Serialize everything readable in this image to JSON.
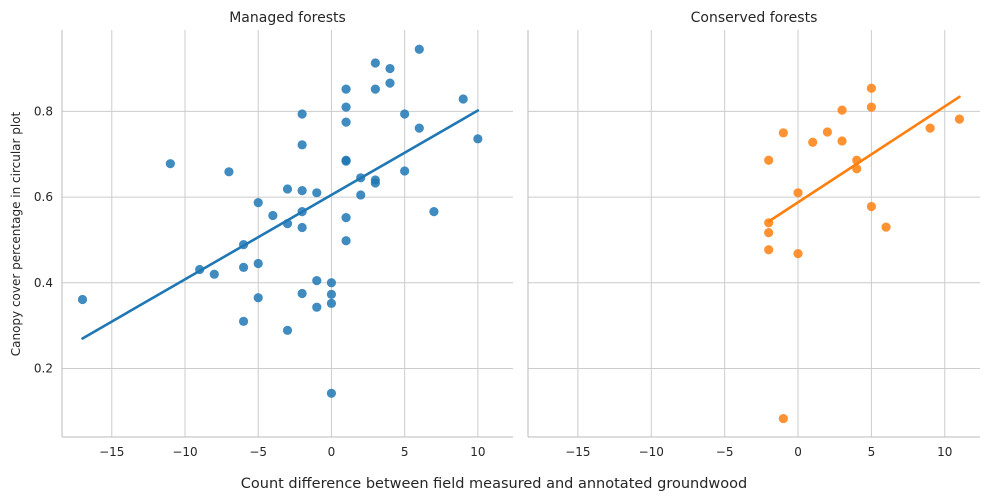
{
  "chart_data": {
    "type": "scatter",
    "xlabel": "Count difference between field measured and annotated groundwood",
    "ylabel": "Canopy cover percentage in circular plot",
    "xlim": [
      -18.4,
      12.4
    ],
    "ylim": [
      0.04,
      0.99
    ],
    "x_ticks": [
      -15,
      -10,
      -5,
      0,
      5,
      10
    ],
    "y_ticks": [
      0.2,
      0.4,
      0.6,
      0.8
    ],
    "x_tick_labels": [
      "−15",
      "−10",
      "−5",
      "0",
      "5",
      "10"
    ],
    "y_tick_labels": [
      "0.2",
      "0.4",
      "0.6",
      "0.8"
    ],
    "grid": true,
    "legend": "none",
    "panels": [
      {
        "title": "Managed forests",
        "color": "#1f77b4",
        "fit": {
          "x": [
            -17,
            10
          ],
          "y": [
            0.27,
            0.802
          ]
        },
        "points": [
          {
            "x": -17,
            "y": 0.361
          },
          {
            "x": -11,
            "y": 0.678
          },
          {
            "x": -9,
            "y": 0.431
          },
          {
            "x": -8,
            "y": 0.42
          },
          {
            "x": -7,
            "y": 0.659
          },
          {
            "x": -6,
            "y": 0.489
          },
          {
            "x": -6,
            "y": 0.436
          },
          {
            "x": -6,
            "y": 0.31
          },
          {
            "x": -5,
            "y": 0.587
          },
          {
            "x": -5,
            "y": 0.445
          },
          {
            "x": -5,
            "y": 0.365
          },
          {
            "x": -4,
            "y": 0.557
          },
          {
            "x": -3,
            "y": 0.619
          },
          {
            "x": -3,
            "y": 0.538
          },
          {
            "x": -3,
            "y": 0.289
          },
          {
            "x": -2,
            "y": 0.794
          },
          {
            "x": -2,
            "y": 0.722
          },
          {
            "x": -2,
            "y": 0.615
          },
          {
            "x": -2,
            "y": 0.566
          },
          {
            "x": -2,
            "y": 0.529
          },
          {
            "x": -2,
            "y": 0.375
          },
          {
            "x": -1,
            "y": 0.61
          },
          {
            "x": -1,
            "y": 0.405
          },
          {
            "x": -1,
            "y": 0.343
          },
          {
            "x": 0,
            "y": 0.4
          },
          {
            "x": 0,
            "y": 0.373
          },
          {
            "x": 0,
            "y": 0.352
          },
          {
            "x": 0,
            "y": 0.142
          },
          {
            "x": 1,
            "y": 0.852
          },
          {
            "x": 1,
            "y": 0.81
          },
          {
            "x": 1,
            "y": 0.775
          },
          {
            "x": 1,
            "y": 0.686
          },
          {
            "x": 1,
            "y": 0.684
          },
          {
            "x": 1,
            "y": 0.552
          },
          {
            "x": 1,
            "y": 0.498
          },
          {
            "x": 2,
            "y": 0.645
          },
          {
            "x": 2,
            "y": 0.605
          },
          {
            "x": 3,
            "y": 0.913
          },
          {
            "x": 3,
            "y": 0.852
          },
          {
            "x": 3,
            "y": 0.64
          },
          {
            "x": 3,
            "y": 0.633
          },
          {
            "x": 4,
            "y": 0.9
          },
          {
            "x": 4,
            "y": 0.866
          },
          {
            "x": 5,
            "y": 0.794
          },
          {
            "x": 5,
            "y": 0.661
          },
          {
            "x": 6,
            "y": 0.945
          },
          {
            "x": 6,
            "y": 0.761
          },
          {
            "x": 7,
            "y": 0.566
          },
          {
            "x": 9,
            "y": 0.829
          },
          {
            "x": 10,
            "y": 0.736
          }
        ]
      },
      {
        "title": "Conserved forests",
        "color": "#ff7f0e",
        "fit": {
          "x": [
            -2,
            11
          ],
          "y": [
            0.543,
            0.834
          ]
        },
        "points": [
          {
            "x": -2,
            "y": 0.686
          },
          {
            "x": -2,
            "y": 0.54
          },
          {
            "x": -2,
            "y": 0.517
          },
          {
            "x": -2,
            "y": 0.477
          },
          {
            "x": -1,
            "y": 0.75
          },
          {
            "x": -1,
            "y": 0.083
          },
          {
            "x": 0,
            "y": 0.61
          },
          {
            "x": 0,
            "y": 0.468
          },
          {
            "x": 1,
            "y": 0.728
          },
          {
            "x": 2,
            "y": 0.752
          },
          {
            "x": 3,
            "y": 0.803
          },
          {
            "x": 3,
            "y": 0.731
          },
          {
            "x": 4,
            "y": 0.686
          },
          {
            "x": 4,
            "y": 0.666
          },
          {
            "x": 5,
            "y": 0.854
          },
          {
            "x": 5,
            "y": 0.81
          },
          {
            "x": 5,
            "y": 0.578
          },
          {
            "x": 6,
            "y": 0.53
          },
          {
            "x": 9,
            "y": 0.761
          },
          {
            "x": 11,
            "y": 0.782
          }
        ]
      }
    ]
  }
}
